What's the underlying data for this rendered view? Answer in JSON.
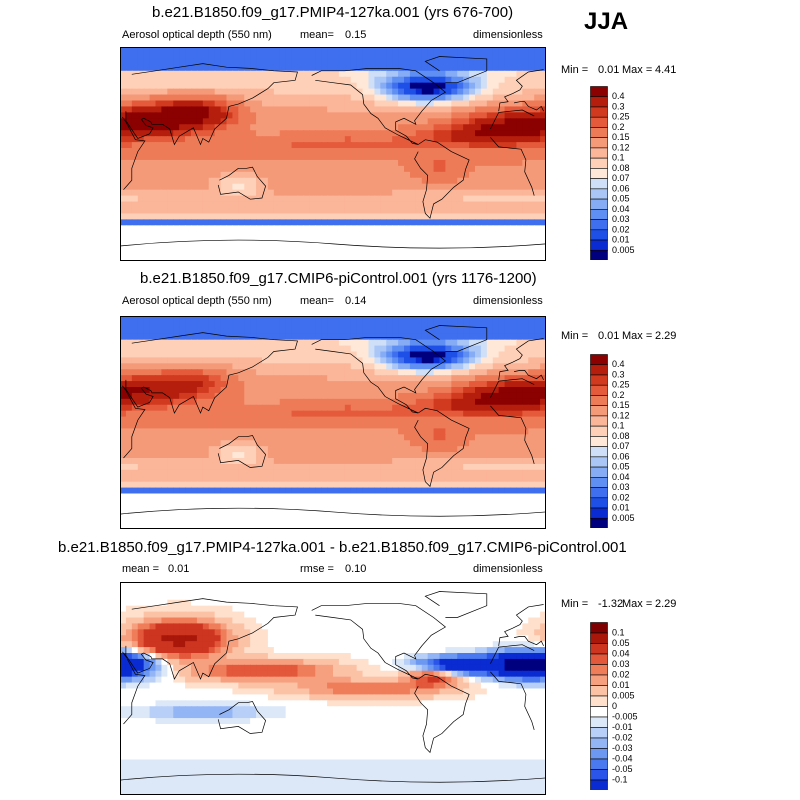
{
  "season": "JJA",
  "colors": {
    "abs": [
      "#00007f",
      "#0a2bd1",
      "#1e4fe6",
      "#3f6fee",
      "#5f8ff2",
      "#86acf5",
      "#a9c6f7",
      "#cfdff8",
      "#ffe8d8",
      "#ffd0b8",
      "#fbb598",
      "#f59a78",
      "#ee7b58",
      "#e45a3a",
      "#d13a1f",
      "#b51e0d",
      "#8b0000"
    ],
    "diff": [
      "#00007f",
      "#0a2bd1",
      "#2a55e8",
      "#4a78ee",
      "#6d98f2",
      "#93b5f5",
      "#b8d0f7",
      "#dce8f8",
      "#ffffff",
      "#ffe0cc",
      "#fcc2a6",
      "#f7a080",
      "#ef7d5a",
      "#e3573a",
      "#cd3520",
      "#a81709",
      "#7f0000"
    ],
    "land": "#000000"
  },
  "panels": [
    {
      "title": "b.e21.B1850.f09_g17.PMIP4-127ka.001 (yrs 676-700)",
      "left_label": "Aerosol optical depth (550 nm)",
      "stat_label": "mean=",
      "stat_value": "0.15",
      "units": "dimensionless",
      "min_label": "Min =",
      "min_value": "0.01",
      "max_label": "Max =",
      "max_value": "4.41",
      "colorbar": [
        "0.4",
        "0.3",
        "0.25",
        "0.2",
        "0.15",
        "0.12",
        "0.1",
        "0.08",
        "0.07",
        "0.06",
        "0.05",
        "0.04",
        "0.03",
        "0.02",
        "0.01",
        "0.005"
      ]
    },
    {
      "title": "b.e21.B1850.f09_g17.CMIP6-piControl.001 (yrs 1176-1200)",
      "left_label": "Aerosol optical depth (550 nm)",
      "stat_label": "mean=",
      "stat_value": "0.14",
      "units": "dimensionless",
      "min_label": "Min =",
      "min_value": "0.01",
      "max_label": "Max =",
      "max_value": "2.29",
      "colorbar": [
        "0.4",
        "0.3",
        "0.25",
        "0.2",
        "0.15",
        "0.12",
        "0.1",
        "0.08",
        "0.07",
        "0.06",
        "0.05",
        "0.04",
        "0.03",
        "0.02",
        "0.01",
        "0.005"
      ]
    },
    {
      "title": "b.e21.B1850.f09_g17.PMIP4-127ka.001 - b.e21.B1850.f09_g17.CMIP6-piControl.001",
      "left_label": "mean =",
      "left_value": "0.01",
      "stat_label": "rmse =",
      "stat_value": "0.10",
      "units": "dimensionless",
      "min_label": "Min =",
      "min_value": "-1.32",
      "max_label": "Max =",
      "max_value": "2.29",
      "colorbar": [
        "0.1",
        "0.05",
        "0.04",
        "0.03",
        "0.02",
        "0.01",
        "0.005",
        "0",
        "-0.005",
        "-0.01",
        "-0.02",
        "-0.03",
        "-0.04",
        "-0.05",
        "-0.1"
      ]
    }
  ],
  "chart_data": [
    {
      "type": "heatmap",
      "title": "b.e21.B1850.f09_g17.PMIP4-127ka.001 (yrs 676-700)",
      "variable": "Aerosol optical depth (550 nm)",
      "units": "dimensionless",
      "mean": 0.15,
      "min": 0.01,
      "max": 4.41,
      "levels": [
        0.005,
        0.01,
        0.02,
        0.03,
        0.04,
        0.05,
        0.06,
        0.07,
        0.08,
        0.1,
        0.12,
        0.15,
        0.2,
        0.25,
        0.3,
        0.4
      ]
    },
    {
      "type": "heatmap",
      "title": "b.e21.B1850.f09_g17.CMIP6-piControl.001 (yrs 1176-1200)",
      "variable": "Aerosol optical depth (550 nm)",
      "units": "dimensionless",
      "mean": 0.14,
      "min": 0.01,
      "max": 2.29,
      "levels": [
        0.005,
        0.01,
        0.02,
        0.03,
        0.04,
        0.05,
        0.06,
        0.07,
        0.08,
        0.1,
        0.12,
        0.15,
        0.2,
        0.25,
        0.3,
        0.4
      ]
    },
    {
      "type": "heatmap",
      "title": "b.e21.B1850.f09_g17.PMIP4-127ka.001 - b.e21.B1850.f09_g17.CMIP6-piControl.001",
      "units": "dimensionless",
      "mean": 0.01,
      "rmse": 0.1,
      "min": -1.32,
      "max": 2.29,
      "levels": [
        -0.1,
        -0.05,
        -0.04,
        -0.03,
        -0.02,
        -0.01,
        -0.005,
        0,
        0.005,
        0.01,
        0.02,
        0.03,
        0.04,
        0.05,
        0.1
      ]
    }
  ]
}
